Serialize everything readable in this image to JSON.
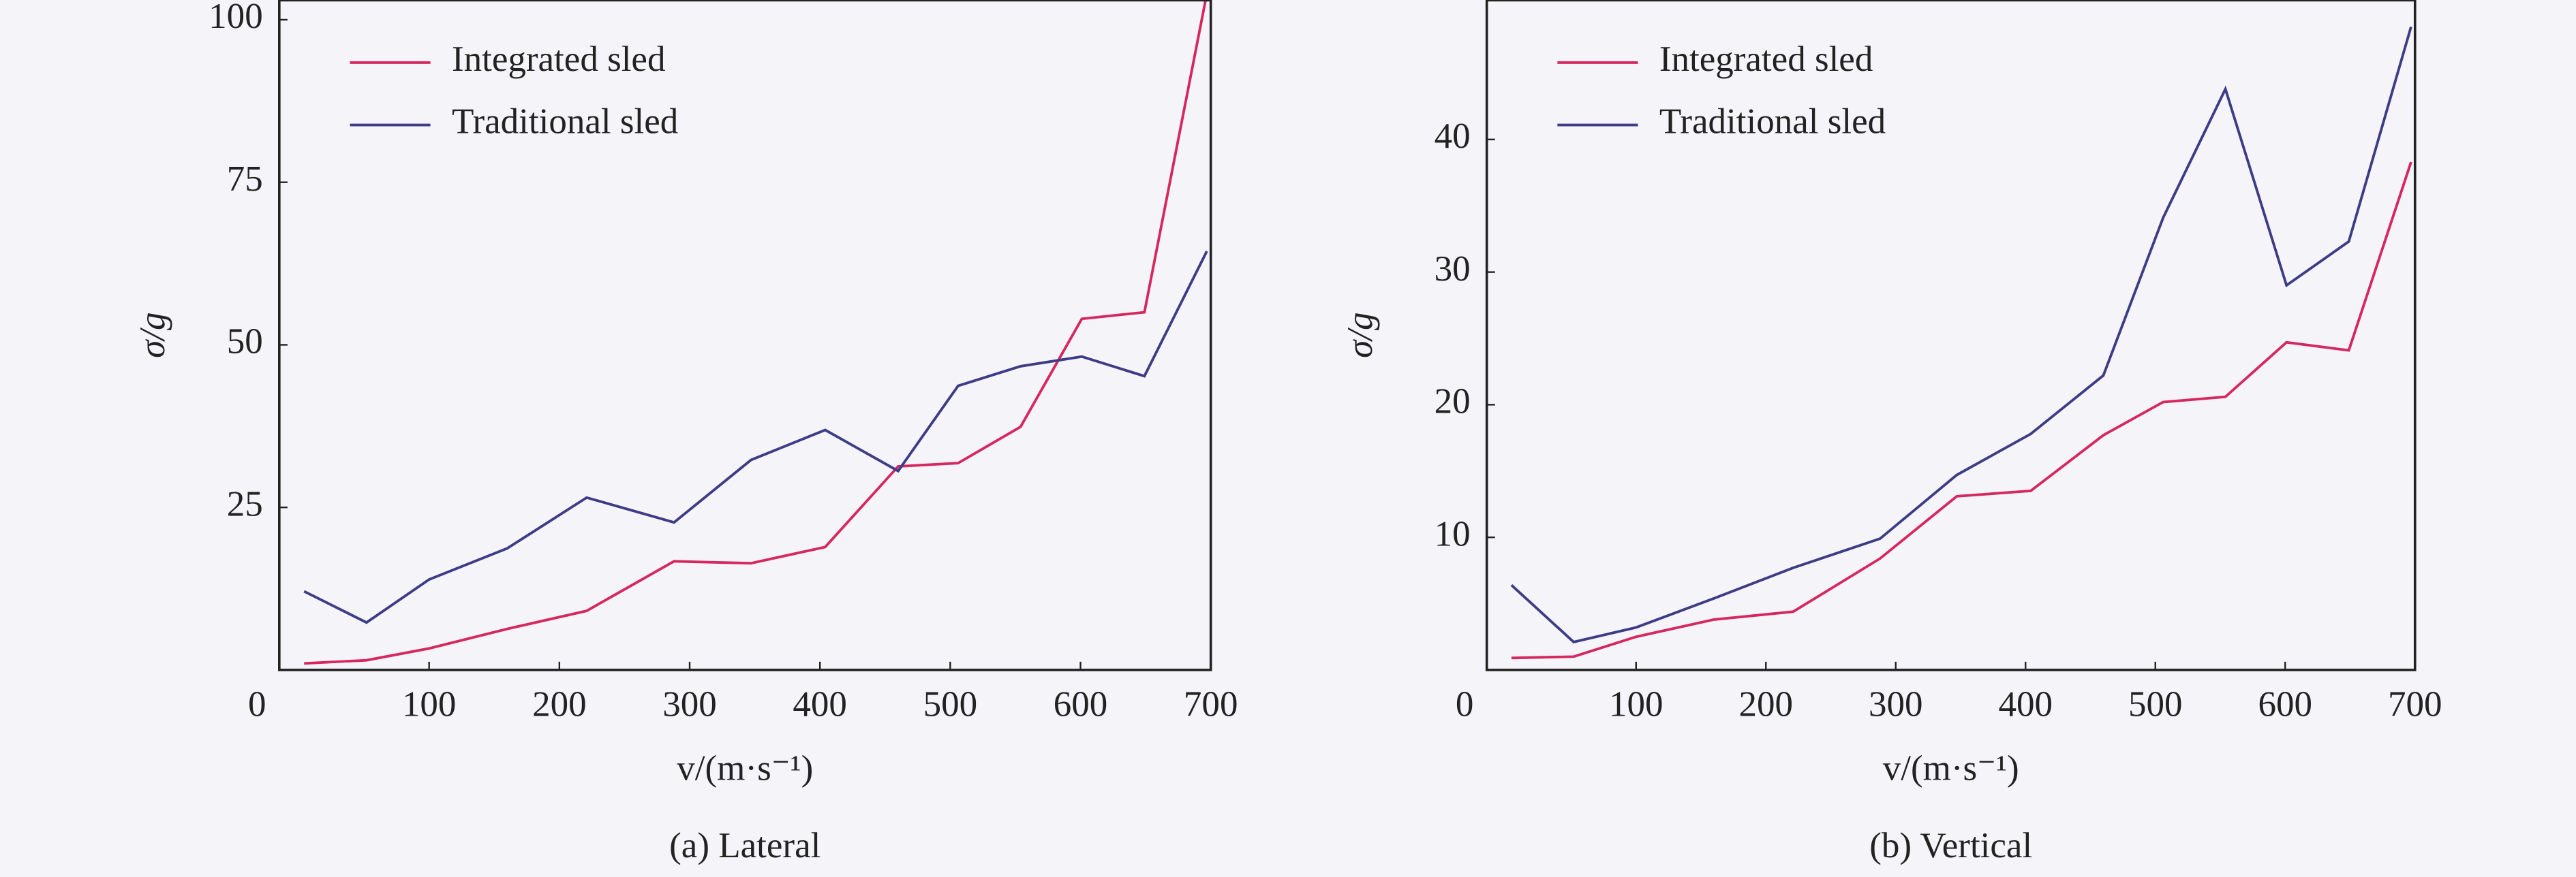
{
  "chart_data": [
    {
      "type": "line",
      "title": "(a) Lateral",
      "xlabel": "v/(m·s⁻¹)",
      "ylabel": "σ/g",
      "xlim": [
        -15,
        700
      ],
      "ylim": [
        0,
        103
      ],
      "xticks": [
        100,
        200,
        300,
        400,
        500,
        600,
        700
      ],
      "yticks": [
        0,
        25,
        50,
        75,
        100
      ],
      "legend": "upper left",
      "x": [
        4,
        52,
        100,
        160,
        221,
        288,
        347,
        404,
        460,
        506,
        554,
        601,
        649,
        697
      ],
      "series": [
        {
          "name": "Integrated sled",
          "color": "#d6285e",
          "values": [
            1,
            1.5,
            3.3,
            6.3,
            9.1,
            16.7,
            16.4,
            18.9,
            31.3,
            31.8,
            37.4,
            54,
            55,
            104
          ]
        },
        {
          "name": "Traditional sled",
          "color": "#3e3c86",
          "values": [
            12.1,
            7.3,
            13.9,
            18.7,
            26.5,
            22.7,
            32.3,
            36.9,
            30.6,
            43.7,
            46.7,
            48.2,
            45.2,
            64.4
          ]
        }
      ]
    },
    {
      "type": "line",
      "title": "(b) Vertical",
      "xlabel": "v/(m·s⁻¹)",
      "ylabel": "σ/g",
      "xlim": [
        -15,
        700
      ],
      "ylim": [
        0,
        50.5
      ],
      "xticks": [
        100,
        200,
        300,
        400,
        500,
        600,
        700
      ],
      "yticks": [
        0,
        10,
        20,
        30,
        40
      ],
      "legend": "upper left",
      "x": [
        4,
        52,
        100,
        160,
        221,
        288,
        347,
        404,
        460,
        506,
        554,
        601,
        649,
        697
      ],
      "series": [
        {
          "name": "Integrated sled",
          "color": "#d6285e",
          "values": [
            0.9,
            1,
            2.5,
            3.8,
            4.4,
            8.4,
            13.1,
            13.5,
            17.7,
            20.2,
            20.6,
            24.7,
            24.1,
            38.3
          ]
        },
        {
          "name": "Traditional sled",
          "color": "#3e3c86",
          "values": [
            6.4,
            2.1,
            3.2,
            5.4,
            7.7,
            9.9,
            14.7,
            17.8,
            22.2,
            34.1,
            43.8,
            29,
            32.3,
            48.5
          ]
        }
      ]
    }
  ]
}
